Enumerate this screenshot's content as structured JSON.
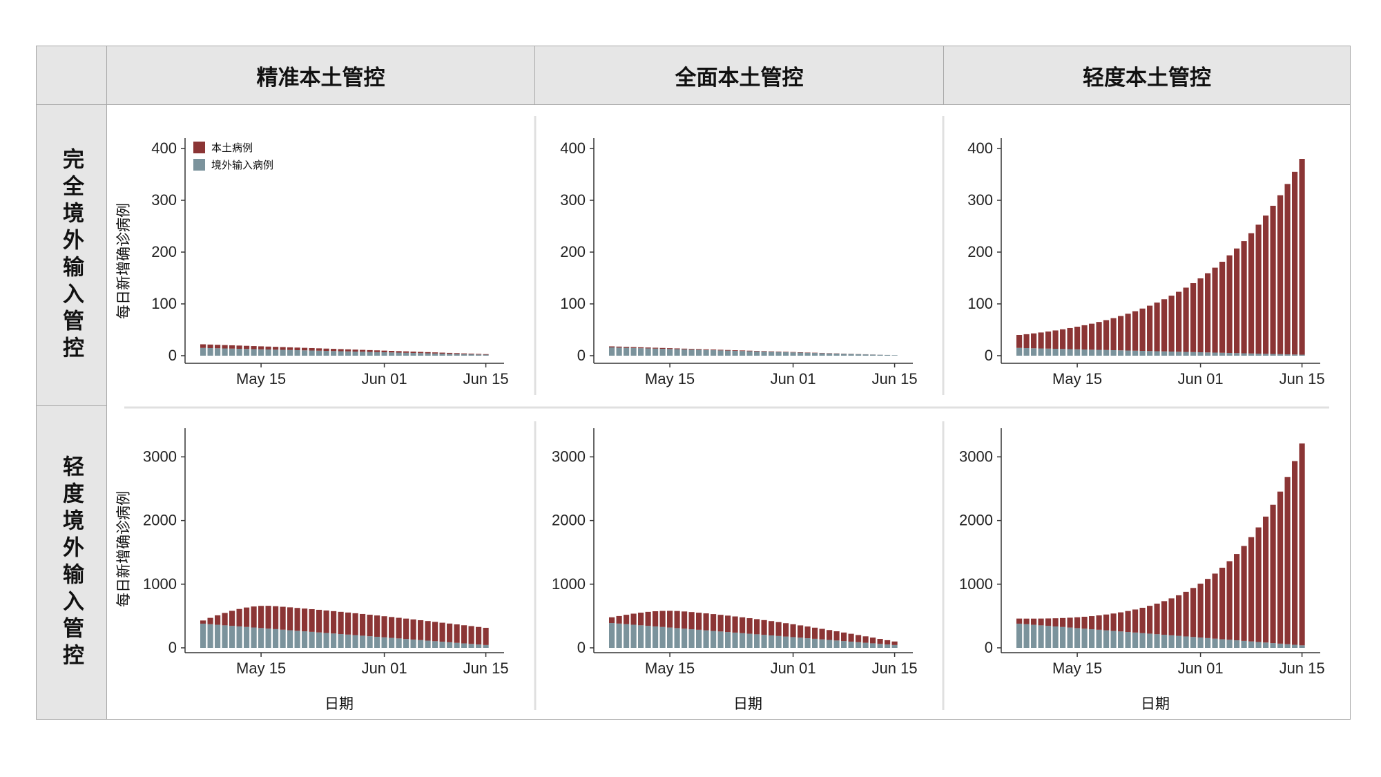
{
  "col_headers": [
    "精准本土管控",
    "全面本土管控",
    "轻度本土管控"
  ],
  "row_headers": [
    "完全境外输入管控",
    "轻度境外输入管控"
  ],
  "colors": {
    "local": "#8b3535",
    "imported": "#7b939c",
    "grid_border": "#a8a8a8",
    "header_bg": "#e6e6e6"
  },
  "chart_data": {
    "type": "bar",
    "stacked": true,
    "ylabel": "每日新增确诊病例",
    "xlabel": "日期",
    "x_ticks": [
      "May 15",
      "Jun 01",
      "Jun 15"
    ],
    "legend": {
      "placement": "top-left",
      "entries": [
        "本土病例",
        "境外输入病例"
      ]
    },
    "series_names": [
      "本土病例",
      "境外输入病例"
    ],
    "dates": {
      "start": "May 07",
      "end": "Jun 15",
      "days": 40
    },
    "panels": [
      {
        "row": 0,
        "col": 0,
        "ylim": [
          0,
          420
        ],
        "yticks": [
          0,
          100,
          200,
          300,
          400
        ],
        "local_start": 7,
        "local_end": 1,
        "imported_start": 15,
        "imported_end": 2
      },
      {
        "row": 0,
        "col": 1,
        "ylim": [
          0,
          420
        ],
        "yticks": [
          0,
          100,
          200,
          300,
          400
        ],
        "local_start": 2,
        "local_end": 0,
        "imported_start": 16,
        "imported_end": 1
      },
      {
        "row": 0,
        "col": 2,
        "ylim": [
          0,
          420
        ],
        "yticks": [
          0,
          100,
          200,
          300,
          400
        ],
        "local_start": 25,
        "local_end": 378,
        "imported_start": 15,
        "imported_end": 2
      },
      {
        "row": 1,
        "col": 0,
        "ylim": [
          0,
          3450
        ],
        "yticks": [
          0,
          1000,
          2000,
          3000
        ],
        "local_start": 50,
        "local_peak": 360,
        "local_end": 270,
        "imported_start": 380,
        "imported_end": 45
      },
      {
        "row": 1,
        "col": 1,
        "ylim": [
          0,
          3450
        ],
        "yticks": [
          0,
          1000,
          2000,
          3000
        ],
        "local_start": 90,
        "local_peak": 270,
        "local_end": 55,
        "imported_start": 390,
        "imported_end": 45
      },
      {
        "row": 1,
        "col": 2,
        "ylim": [
          0,
          3450
        ],
        "yticks": [
          0,
          1000,
          2000,
          3000
        ],
        "local_start": 80,
        "local_end": 3170,
        "imported_start": 380,
        "imported_end": 40
      }
    ]
  }
}
